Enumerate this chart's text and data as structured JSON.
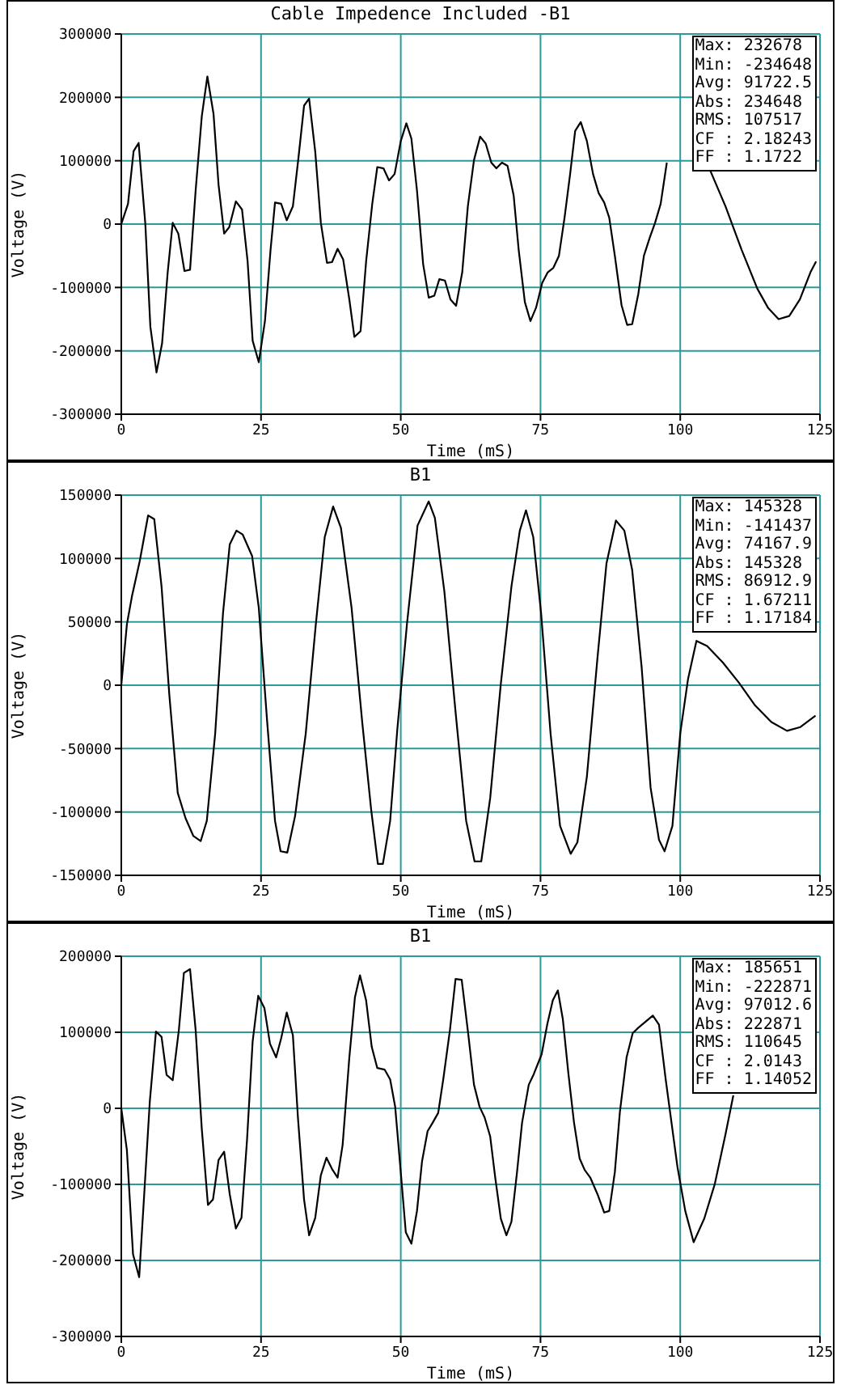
{
  "chart_data": [
    {
      "type": "line",
      "title": "Cable Impedence Included -B1",
      "xlabel": "Time (mS)",
      "ylabel": "Voltage (V)",
      "x": [
        0,
        1.2,
        2.2,
        3.1,
        4.3,
        5.2,
        6.3,
        7.3,
        8.3,
        9.2,
        10.2,
        11.3,
        12.3,
        13.3,
        14.4,
        15.4,
        16.5,
        17.4,
        18.4,
        19.3,
        20.5,
        21.6,
        22.6,
        23.5,
        24.6,
        25.7,
        26.7,
        27.5,
        28.6,
        29.6,
        30.7,
        31.7,
        32.7,
        33.6,
        34.7,
        35.7,
        36.8,
        37.7,
        38.7,
        39.7,
        40.8,
        41.7,
        42.8,
        43.8,
        44.9,
        45.8,
        46.9,
        47.9,
        48.9,
        50,
        51,
        51.9,
        52.9,
        54,
        55,
        56,
        56.9,
        57.9,
        58.9,
        59.9,
        61,
        62,
        63.1,
        64.2,
        65.2,
        66.2,
        67.1,
        68.1,
        69.1,
        70.2,
        71.1,
        72.2,
        73.2,
        74.2,
        75.3,
        76.3,
        77.3,
        78.3,
        79.3,
        80.3,
        81.2,
        82.2,
        83.3,
        84.4,
        85.4,
        86.4,
        87.3,
        88.3,
        89.5,
        90.5,
        91.4,
        92.5,
        93.5,
        94.6,
        95.5,
        96.5,
        97.6,
        101,
        105.2,
        108.1,
        111,
        113.8,
        115.7,
        117.6,
        119.5,
        121.4,
        123.3,
        124.3
      ],
      "series": [
        {
          "color": "#000000",
          "values": [
            0,
            32000,
            115000,
            128000,
            0,
            -162000,
            -234000,
            -188000,
            -76000,
            2000,
            -15000,
            -74000,
            -72000,
            53000,
            170000,
            233000,
            174000,
            62000,
            -15000,
            -5000,
            36000,
            23000,
            -59000,
            -184000,
            -218000,
            -153000,
            -41000,
            34000,
            32000,
            6000,
            28000,
            105000,
            187000,
            198000,
            114000,
            2000,
            -61000,
            -60000,
            -39000,
            -56000,
            -119000,
            -178000,
            -169000,
            -59000,
            32000,
            90000,
            88000,
            69000,
            79000,
            131000,
            159000,
            135000,
            53000,
            -63000,
            -116000,
            -113000,
            -87000,
            -89000,
            -119000,
            -129000,
            -76000,
            28000,
            101000,
            138000,
            127000,
            97000,
            88000,
            97000,
            92000,
            45000,
            -41000,
            -123000,
            -153000,
            -132000,
            -93000,
            -76000,
            -69000,
            -50000,
            10000,
            79000,
            147000,
            161000,
            131000,
            79000,
            49000,
            34000,
            10000,
            -50000,
            -128000,
            -159000,
            -158000,
            -110000,
            -50000,
            -20000,
            2000,
            32000,
            97000,
            null,
            88000,
            28000,
            -41000,
            -102000,
            -132000,
            -150000,
            -145000,
            -119000,
            -76000,
            -59000
          ]
        }
      ],
      "xlim": [
        0,
        125
      ],
      "xticks": [
        0,
        25,
        50,
        75,
        100,
        125
      ],
      "ylim": [
        -300000,
        300000
      ],
      "yticks": [
        -300000,
        -200000,
        -100000,
        0,
        100000,
        200000,
        300000
      ],
      "grid": true,
      "marker": "none",
      "line_style": "solid",
      "annotations": [
        "Max: 232678",
        "Min: -234648",
        "Avg: 91722.5",
        "Abs: 234648",
        "RMS: 107517",
        "CF : 2.18243",
        "FF : 1.1722"
      ]
    },
    {
      "type": "line",
      "title": "B1",
      "xlabel": "Time (mS)",
      "ylabel": "Voltage (V)",
      "x": [
        0,
        1,
        1.9,
        3.3,
        4.8,
        5.9,
        7.2,
        8.6,
        10.1,
        11.5,
        12.9,
        14.2,
        15.3,
        16.8,
        18.2,
        19.4,
        20.6,
        21.7,
        23.4,
        24.6,
        26.1,
        27.5,
        28.5,
        29.7,
        31.1,
        33,
        34.8,
        36.4,
        37.9,
        39.3,
        41.2,
        43.1,
        44.7,
        45.9,
        46.8,
        48.1,
        49.4,
        51.1,
        53,
        55,
        56.1,
        57.8,
        59.8,
        61.7,
        63.2,
        64.4,
        66,
        67.9,
        69.8,
        71.3,
        72.4,
        73.7,
        75.1,
        76.8,
        78.5,
        80.4,
        81.6,
        83.3,
        85.2,
        86.8,
        88.5,
        90,
        91.4,
        93.1,
        94.7,
        96.2,
        97.2,
        98.6,
        100,
        101.4,
        102.9,
        104.8,
        107.6,
        110.5,
        113.4,
        116.3,
        119.1,
        121.5,
        124.2
      ],
      "series": [
        {
          "color": "#000000",
          "values": [
            0,
            48000,
            70000,
            98000,
            134000,
            131000,
            78000,
            -8000,
            -85000,
            -105000,
            -119000,
            -123000,
            -107000,
            -38000,
            57000,
            111000,
            122000,
            119000,
            102000,
            61000,
            -29000,
            -107000,
            -131000,
            -132000,
            -103000,
            -38000,
            48000,
            117000,
            141000,
            124000,
            61000,
            -29000,
            -98000,
            -141000,
            -141000,
            -107000,
            -34000,
            48000,
            126000,
            145000,
            132000,
            74000,
            -21000,
            -107000,
            -139000,
            -139000,
            -89000,
            1000,
            78000,
            122000,
            138000,
            117000,
            57000,
            -38000,
            -111000,
            -133000,
            -124000,
            -72000,
            22000,
            96000,
            130000,
            122000,
            91000,
            14000,
            -81000,
            -122000,
            -131000,
            -111000,
            -38000,
            5000,
            35000,
            31000,
            18000,
            2000,
            -16000,
            -29000,
            -36000,
            -33000,
            -24000
          ]
        }
      ],
      "xlim": [
        0,
        125
      ],
      "xticks": [
        0,
        25,
        50,
        75,
        100,
        125
      ],
      "ylim": [
        -150000,
        150000
      ],
      "yticks": [
        -150000,
        -100000,
        -50000,
        0,
        50000,
        100000,
        150000
      ],
      "grid": true,
      "marker": "none",
      "line_style": "solid",
      "annotations": [
        "Max: 145328",
        "Min: -141437",
        "Avg: 74167.9",
        "Abs: 145328",
        "RMS: 86912.9",
        "CF : 1.67211",
        "FF : 1.17184"
      ]
    },
    {
      "type": "line",
      "title": "B1",
      "xlabel": "Time (mS)",
      "ylabel": "Voltage (V)",
      "x": [
        0,
        1,
        2.1,
        3.2,
        4.1,
        5.1,
        6.2,
        7.2,
        8.1,
        9.2,
        10.3,
        11.2,
        12.3,
        13.3,
        14.4,
        15.5,
        16.4,
        17.4,
        18.4,
        19.4,
        20.5,
        21.5,
        22.5,
        23.5,
        24.5,
        25.6,
        26.6,
        27.7,
        28.6,
        29.6,
        30.7,
        31.6,
        32.7,
        33.6,
        34.7,
        35.7,
        36.7,
        37.8,
        38.7,
        39.6,
        40.8,
        41.8,
        42.7,
        43.8,
        44.8,
        45.8,
        47.1,
        48.1,
        49,
        50,
        50.9,
        51.9,
        52.9,
        53.8,
        54.8,
        55.7,
        56.7,
        57.6,
        58.8,
        59.8,
        60.9,
        62.1,
        63.1,
        64.1,
        65,
        66,
        66.9,
        67.9,
        68.9,
        69.8,
        70.8,
        71.7,
        72.9,
        73.8,
        75.2,
        76.2,
        77.2,
        78.1,
        79,
        80,
        81,
        82,
        82.9,
        83.9,
        85.2,
        86.4,
        87.3,
        88.3,
        89.2,
        90.4,
        91.5,
        92.5,
        93.8,
        95.1,
        96.2,
        97.4,
        99.5,
        100.9,
        102.4,
        104.3,
        106.2,
        108.1,
        109.5
      ],
      "series": [
        {
          "color": "#000000",
          "values": [
            0,
            -55000,
            -192000,
            -222000,
            -113000,
            9000,
            101000,
            94000,
            44000,
            37000,
            103000,
            178000,
            183000,
            103000,
            -27000,
            -127000,
            -120000,
            -68000,
            -57000,
            -113000,
            -158000,
            -144000,
            -41000,
            88000,
            148000,
            132000,
            85000,
            67000,
            92000,
            126000,
            96000,
            -12000,
            -120000,
            -167000,
            -144000,
            -88000,
            -65000,
            -81000,
            -91000,
            -48000,
            67000,
            146000,
            175000,
            142000,
            81000,
            53000,
            51000,
            38000,
            2000,
            -84000,
            -163000,
            -178000,
            -135000,
            -70000,
            -30000,
            -19000,
            -6000,
            38000,
            103000,
            170000,
            169000,
            96000,
            31000,
            2000,
            -12000,
            -37000,
            -91000,
            -145000,
            -167000,
            -149000,
            -84000,
            -19000,
            31000,
            45000,
            71000,
            110000,
            142000,
            155000,
            117000,
            45000,
            -19000,
            -66000,
            -81000,
            -91000,
            -113000,
            -137000,
            -135000,
            -84000,
            -5000,
            67000,
            99000,
            106000,
            114000,
            122000,
            110000,
            38000,
            -77000,
            -135000,
            -176000,
            -145000,
            -99000,
            -34000,
            17000
          ]
        }
      ],
      "xlim": [
        0,
        125
      ],
      "xticks": [
        0,
        25,
        50,
        75,
        100,
        125
      ],
      "ylim": [
        -300000,
        200000
      ],
      "yticks": [
        -300000,
        -200000,
        -100000,
        0,
        100000,
        200000
      ],
      "grid": true,
      "marker": "none",
      "line_style": "solid",
      "annotations": [
        "Max: 185651",
        "Min: -222871",
        "Avg: 97012.6",
        "Abs: 222871",
        "RMS: 110645",
        "CF : 2.0143",
        "FF : 1.14052"
      ]
    }
  ]
}
